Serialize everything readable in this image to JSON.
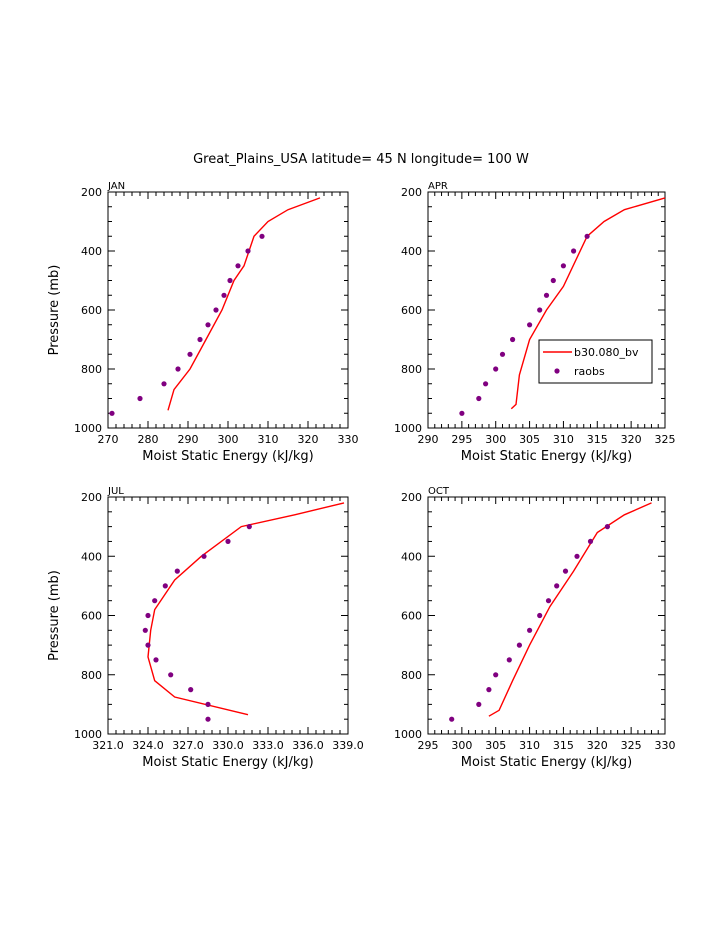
{
  "title": "Great_Plains_USA  latitude= 45 N longitude= 100 W",
  "legend": {
    "model_label": "b30.080_bv",
    "obs_label": "raobs"
  },
  "colors": {
    "model": "#ff0000",
    "obs": "#800080"
  },
  "chart_data": [
    {
      "type": "line",
      "panel_label": "JAN",
      "xlabel": "Moist Static Energy (kJ/kg)",
      "ylabel": "Pressure (mb)",
      "xlim": [
        270,
        330
      ],
      "ylim": [
        1000,
        200
      ],
      "xticks": [
        "270",
        "280",
        "290",
        "300",
        "310",
        "320",
        "330"
      ],
      "yticks": [
        "200",
        "400",
        "600",
        "800",
        "1000"
      ],
      "show_ylabel": true,
      "show_legend": false,
      "series": [
        {
          "name": "b30.080_bv",
          "kind": "line",
          "x": [
            285.0,
            286.5,
            290.5,
            294.5,
            298.5,
            301.5,
            304.0,
            306.5,
            310.0,
            315.0,
            323.0
          ],
          "y": [
            940,
            870,
            800,
            700,
            600,
            500,
            450,
            350,
            300,
            260,
            220
          ]
        },
        {
          "name": "raobs",
          "kind": "scatter",
          "x": [
            271.0,
            278.0,
            284.0,
            287.5,
            290.5,
            293.0,
            295.0,
            297.0,
            299.0,
            300.5,
            302.5,
            305.0,
            308.5
          ],
          "y": [
            950,
            900,
            850,
            800,
            750,
            700,
            650,
            600,
            550,
            500,
            450,
            400,
            350
          ]
        }
      ]
    },
    {
      "type": "line",
      "panel_label": "APR",
      "xlabel": "Moist Static Energy (kJ/kg)",
      "ylabel": "Pressure (mb)",
      "xlim": [
        290,
        325
      ],
      "ylim": [
        1000,
        200
      ],
      "xticks": [
        "290",
        "295",
        "300",
        "305",
        "310",
        "315",
        "320",
        "325"
      ],
      "yticks": [
        "200",
        "400",
        "600",
        "800",
        "1000"
      ],
      "show_ylabel": false,
      "show_legend": true,
      "series": [
        {
          "name": "b30.080_bv",
          "kind": "line",
          "x": [
            302.3,
            303.0,
            303.5,
            305.0,
            307.5,
            310.0,
            313.5,
            316.0,
            319.0,
            325.0
          ],
          "y": [
            935,
            920,
            820,
            700,
            600,
            520,
            350,
            300,
            260,
            220
          ]
        },
        {
          "name": "raobs",
          "kind": "scatter",
          "x": [
            295.0,
            297.5,
            298.5,
            300.0,
            301.0,
            302.5,
            305.0,
            306.5,
            307.5,
            308.5,
            310.0,
            311.5,
            313.5
          ],
          "y": [
            950,
            900,
            850,
            800,
            750,
            700,
            650,
            600,
            550,
            500,
            450,
            400,
            350
          ]
        }
      ]
    },
    {
      "type": "line",
      "panel_label": "JUL",
      "xlabel": "Moist Static Energy (kJ/kg)",
      "ylabel": "Pressure (mb)",
      "xlim": [
        321,
        339
      ],
      "ylim": [
        1000,
        200
      ],
      "xticks": [
        "321.0",
        "324.0",
        "327.0",
        "330.0",
        "333.0",
        "336.0",
        "339.0"
      ],
      "yticks": [
        "200",
        "400",
        "600",
        "800",
        "1000"
      ],
      "show_ylabel": true,
      "show_legend": false,
      "series": [
        {
          "name": "b30.080_bv",
          "kind": "line",
          "x": [
            331.5,
            326.0,
            324.5,
            324.0,
            324.2,
            324.5,
            326.0,
            328.0,
            331.0,
            335.0,
            338.7
          ],
          "y": [
            935,
            875,
            820,
            740,
            650,
            580,
            480,
            400,
            300,
            260,
            220
          ]
        },
        {
          "name": "raobs",
          "kind": "scatter",
          "x": [
            328.5,
            328.5,
            327.2,
            325.7,
            324.6,
            324.0,
            323.8,
            324.0,
            324.5,
            325.3,
            326.2,
            328.2,
            330.0,
            331.6
          ],
          "y": [
            950,
            900,
            850,
            800,
            750,
            700,
            650,
            600,
            550,
            500,
            450,
            400,
            350,
            300
          ]
        }
      ]
    },
    {
      "type": "line",
      "panel_label": "OCT",
      "xlabel": "Moist Static Energy (kJ/kg)",
      "ylabel": "Pressure (mb)",
      "xlim": [
        295,
        330
      ],
      "ylim": [
        1000,
        200
      ],
      "xticks": [
        "295",
        "300",
        "305",
        "310",
        "315",
        "320",
        "325",
        "330"
      ],
      "yticks": [
        "200",
        "400",
        "600",
        "800",
        "1000"
      ],
      "show_ylabel": false,
      "show_legend": false,
      "series": [
        {
          "name": "b30.080_bv",
          "kind": "line",
          "x": [
            304.0,
            305.5,
            307.5,
            310.0,
            313.0,
            316.5,
            320.0,
            324.0,
            328.0
          ],
          "y": [
            940,
            920,
            820,
            700,
            570,
            450,
            320,
            260,
            220
          ]
        },
        {
          "name": "raobs",
          "kind": "scatter",
          "x": [
            298.5,
            302.5,
            304.0,
            305.0,
            307.0,
            308.5,
            310.0,
            311.5,
            312.8,
            314.0,
            315.3,
            317.0,
            319.0,
            321.5
          ],
          "y": [
            950,
            900,
            850,
            800,
            750,
            700,
            650,
            600,
            550,
            500,
            450,
            400,
            350,
            300
          ]
        }
      ]
    }
  ]
}
